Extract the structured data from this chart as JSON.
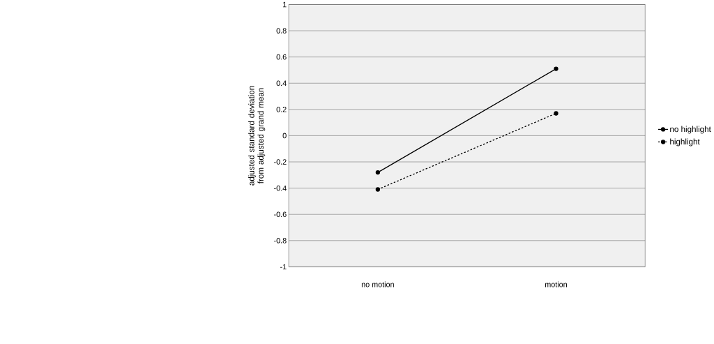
{
  "chart_data": {
    "type": "line",
    "ylabel": "adjusted standard deviation from adjusted grand mean",
    "categories": [
      "no motion",
      "motion"
    ],
    "series": [
      {
        "name": "no highlight",
        "color": "#000000",
        "values": [
          -0.28,
          0.51
        ],
        "line_style": "solid"
      },
      {
        "name": "highlight",
        "color": "#000000",
        "values": [
          -0.41,
          0.17
        ],
        "line_style": "dashed"
      }
    ],
    "ylim": [
      -1,
      1
    ],
    "yticks": [
      -1,
      -0.8,
      -0.6,
      -0.4,
      -0.2,
      0,
      0.2,
      0.4,
      0.6,
      0.8,
      1
    ],
    "grid": "y",
    "legend": "right",
    "marker": "circle"
  }
}
